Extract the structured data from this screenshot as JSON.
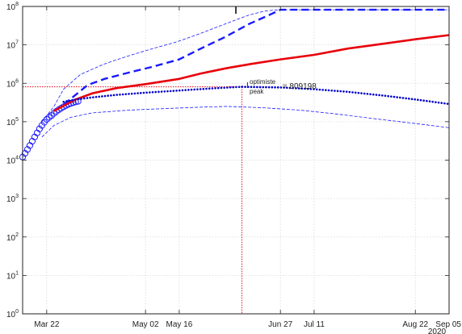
{
  "chart_data": {
    "type": "line",
    "title": "I",
    "xlabel": "",
    "ylabel": "",
    "year_label": "2020",
    "y_scale": "log",
    "grid": true,
    "x_ticks": [
      {
        "date": "2020-03-22",
        "label": "Mar 22"
      },
      {
        "date": "2020-05-02",
        "label": "May 02"
      },
      {
        "date": "2020-05-16",
        "label": "May 16"
      },
      {
        "date": "2020-06-27",
        "label": "Jun 27"
      },
      {
        "date": "2020-07-11",
        "label": "Jul 11"
      },
      {
        "date": "2020-08-22",
        "label": "Aug 22"
      },
      {
        "date": "2020-09-05",
        "label": "Sep 05"
      }
    ],
    "xlim": [
      "2020-03-12",
      "2020-09-05"
    ],
    "y_ticks": [
      {
        "value": 1,
        "label": "10^0"
      },
      {
        "value": 10,
        "label": "10^1"
      },
      {
        "value": 100,
        "label": "10^2"
      },
      {
        "value": 1000,
        "label": "10^3"
      },
      {
        "value": 10000,
        "label": "10^4"
      },
      {
        "value": 100000,
        "label": "10^5"
      },
      {
        "value": 1000000,
        "label": "10^6"
      },
      {
        "value": 10000000,
        "label": "10^7"
      },
      {
        "value": 100000000,
        "label": "10^8"
      }
    ],
    "ylim": [
      1,
      100000000
    ],
    "annotation": {
      "main": "I",
      "superscript": "optimiste",
      "subscript": "peak",
      "text": " = 809198",
      "peak_date": "2020-06-11",
      "peak_value": 809198,
      "color": "#e8000b"
    },
    "series": [
      {
        "style": "observed-circles",
        "color": "#1a1aff",
        "x": [
          "2020-03-12",
          "2020-03-13",
          "2020-03-14",
          "2020-03-15",
          "2020-03-16",
          "2020-03-17",
          "2020-03-18",
          "2020-03-19",
          "2020-03-20",
          "2020-03-21",
          "2020-03-22",
          "2020-03-23",
          "2020-03-24",
          "2020-03-25",
          "2020-03-26",
          "2020-03-27",
          "2020-03-28",
          "2020-03-29",
          "2020-03-30",
          "2020-03-31",
          "2020-04-01",
          "2020-04-02",
          "2020-04-03",
          "2020-04-04"
        ],
        "y": [
          12000,
          15000,
          19000,
          24000,
          31000,
          40000,
          51000,
          65000,
          80000,
          97000,
          115000,
          130000,
          145000,
          165000,
          185000,
          205000,
          225000,
          245000,
          265000,
          285000,
          300000,
          315000,
          328000,
          340000
        ]
      },
      {
        "style": "thin-dashed",
        "color": "#1a1aff",
        "x": [
          "2020-03-20",
          "2020-03-25",
          "2020-03-29",
          "2020-04-05",
          "2020-04-15",
          "2020-04-25",
          "2020-05-05",
          "2020-05-15",
          "2020-05-25",
          "2020-06-04",
          "2020-06-14",
          "2020-06-20",
          "2020-06-24",
          "2020-06-27",
          "2020-07-15",
          "2020-08-05",
          "2020-08-22",
          "2020-09-05"
        ],
        "y": [
          100000,
          250000,
          700000,
          1700000,
          3200000,
          5200000,
          8000000,
          12000000,
          20000000,
          35000000,
          60000000,
          75000000,
          80000000,
          82000000,
          82000000,
          82000000,
          82000000,
          82000000
        ]
      },
      {
        "style": "thick-dashed",
        "color": "#1a1aff",
        "x": [
          "2020-03-29",
          "2020-04-03",
          "2020-04-08",
          "2020-04-15",
          "2020-04-25",
          "2020-05-05",
          "2020-05-16",
          "2020-05-25",
          "2020-06-04",
          "2020-06-14",
          "2020-06-21",
          "2020-06-27",
          "2020-07-15",
          "2020-08-05",
          "2020-08-22",
          "2020-09-05"
        ],
        "y": [
          280000,
          500000,
          900000,
          1300000,
          1900000,
          2700000,
          4200000,
          8000000,
          16000000,
          35000000,
          55000000,
          82000000,
          82000000,
          82000000,
          82000000,
          82000000
        ]
      },
      {
        "style": "solid",
        "color": "#e8000b",
        "x": [
          "2020-03-25",
          "2020-03-29",
          "2020-04-03",
          "2020-04-10",
          "2020-04-20",
          "2020-05-02",
          "2020-05-16",
          "2020-05-25",
          "2020-06-05",
          "2020-06-15",
          "2020-06-27",
          "2020-07-11",
          "2020-07-25",
          "2020-08-10",
          "2020-08-22",
          "2020-09-05"
        ],
        "y": [
          190000,
          260000,
          380000,
          550000,
          750000,
          950000,
          1300000,
          1800000,
          2500000,
          3200000,
          4200000,
          5500000,
          8000000,
          11000000,
          14000000,
          18000000
        ]
      },
      {
        "style": "dotted",
        "color": "#0000cc",
        "x": [
          "2020-03-29",
          "2020-04-03",
          "2020-04-10",
          "2020-04-20",
          "2020-05-02",
          "2020-05-16",
          "2020-05-30",
          "2020-06-11",
          "2020-06-27",
          "2020-07-11",
          "2020-07-25",
          "2020-08-10",
          "2020-08-22",
          "2020-09-05"
        ],
        "y": [
          330000,
          380000,
          430000,
          500000,
          570000,
          650000,
          740000,
          809198,
          780000,
          700000,
          600000,
          470000,
          380000,
          290000
        ]
      },
      {
        "style": "thin-dashed",
        "color": "#1a1aff",
        "x": [
          "2020-03-20",
          "2020-03-25",
          "2020-04-01",
          "2020-04-10",
          "2020-04-25",
          "2020-05-10",
          "2020-05-25",
          "2020-06-05",
          "2020-06-20",
          "2020-07-05",
          "2020-07-20",
          "2020-08-05",
          "2020-08-22",
          "2020-09-05"
        ],
        "y": [
          40000,
          80000,
          130000,
          170000,
          200000,
          220000,
          240000,
          250000,
          230000,
          200000,
          160000,
          120000,
          90000,
          70000
        ]
      }
    ]
  }
}
